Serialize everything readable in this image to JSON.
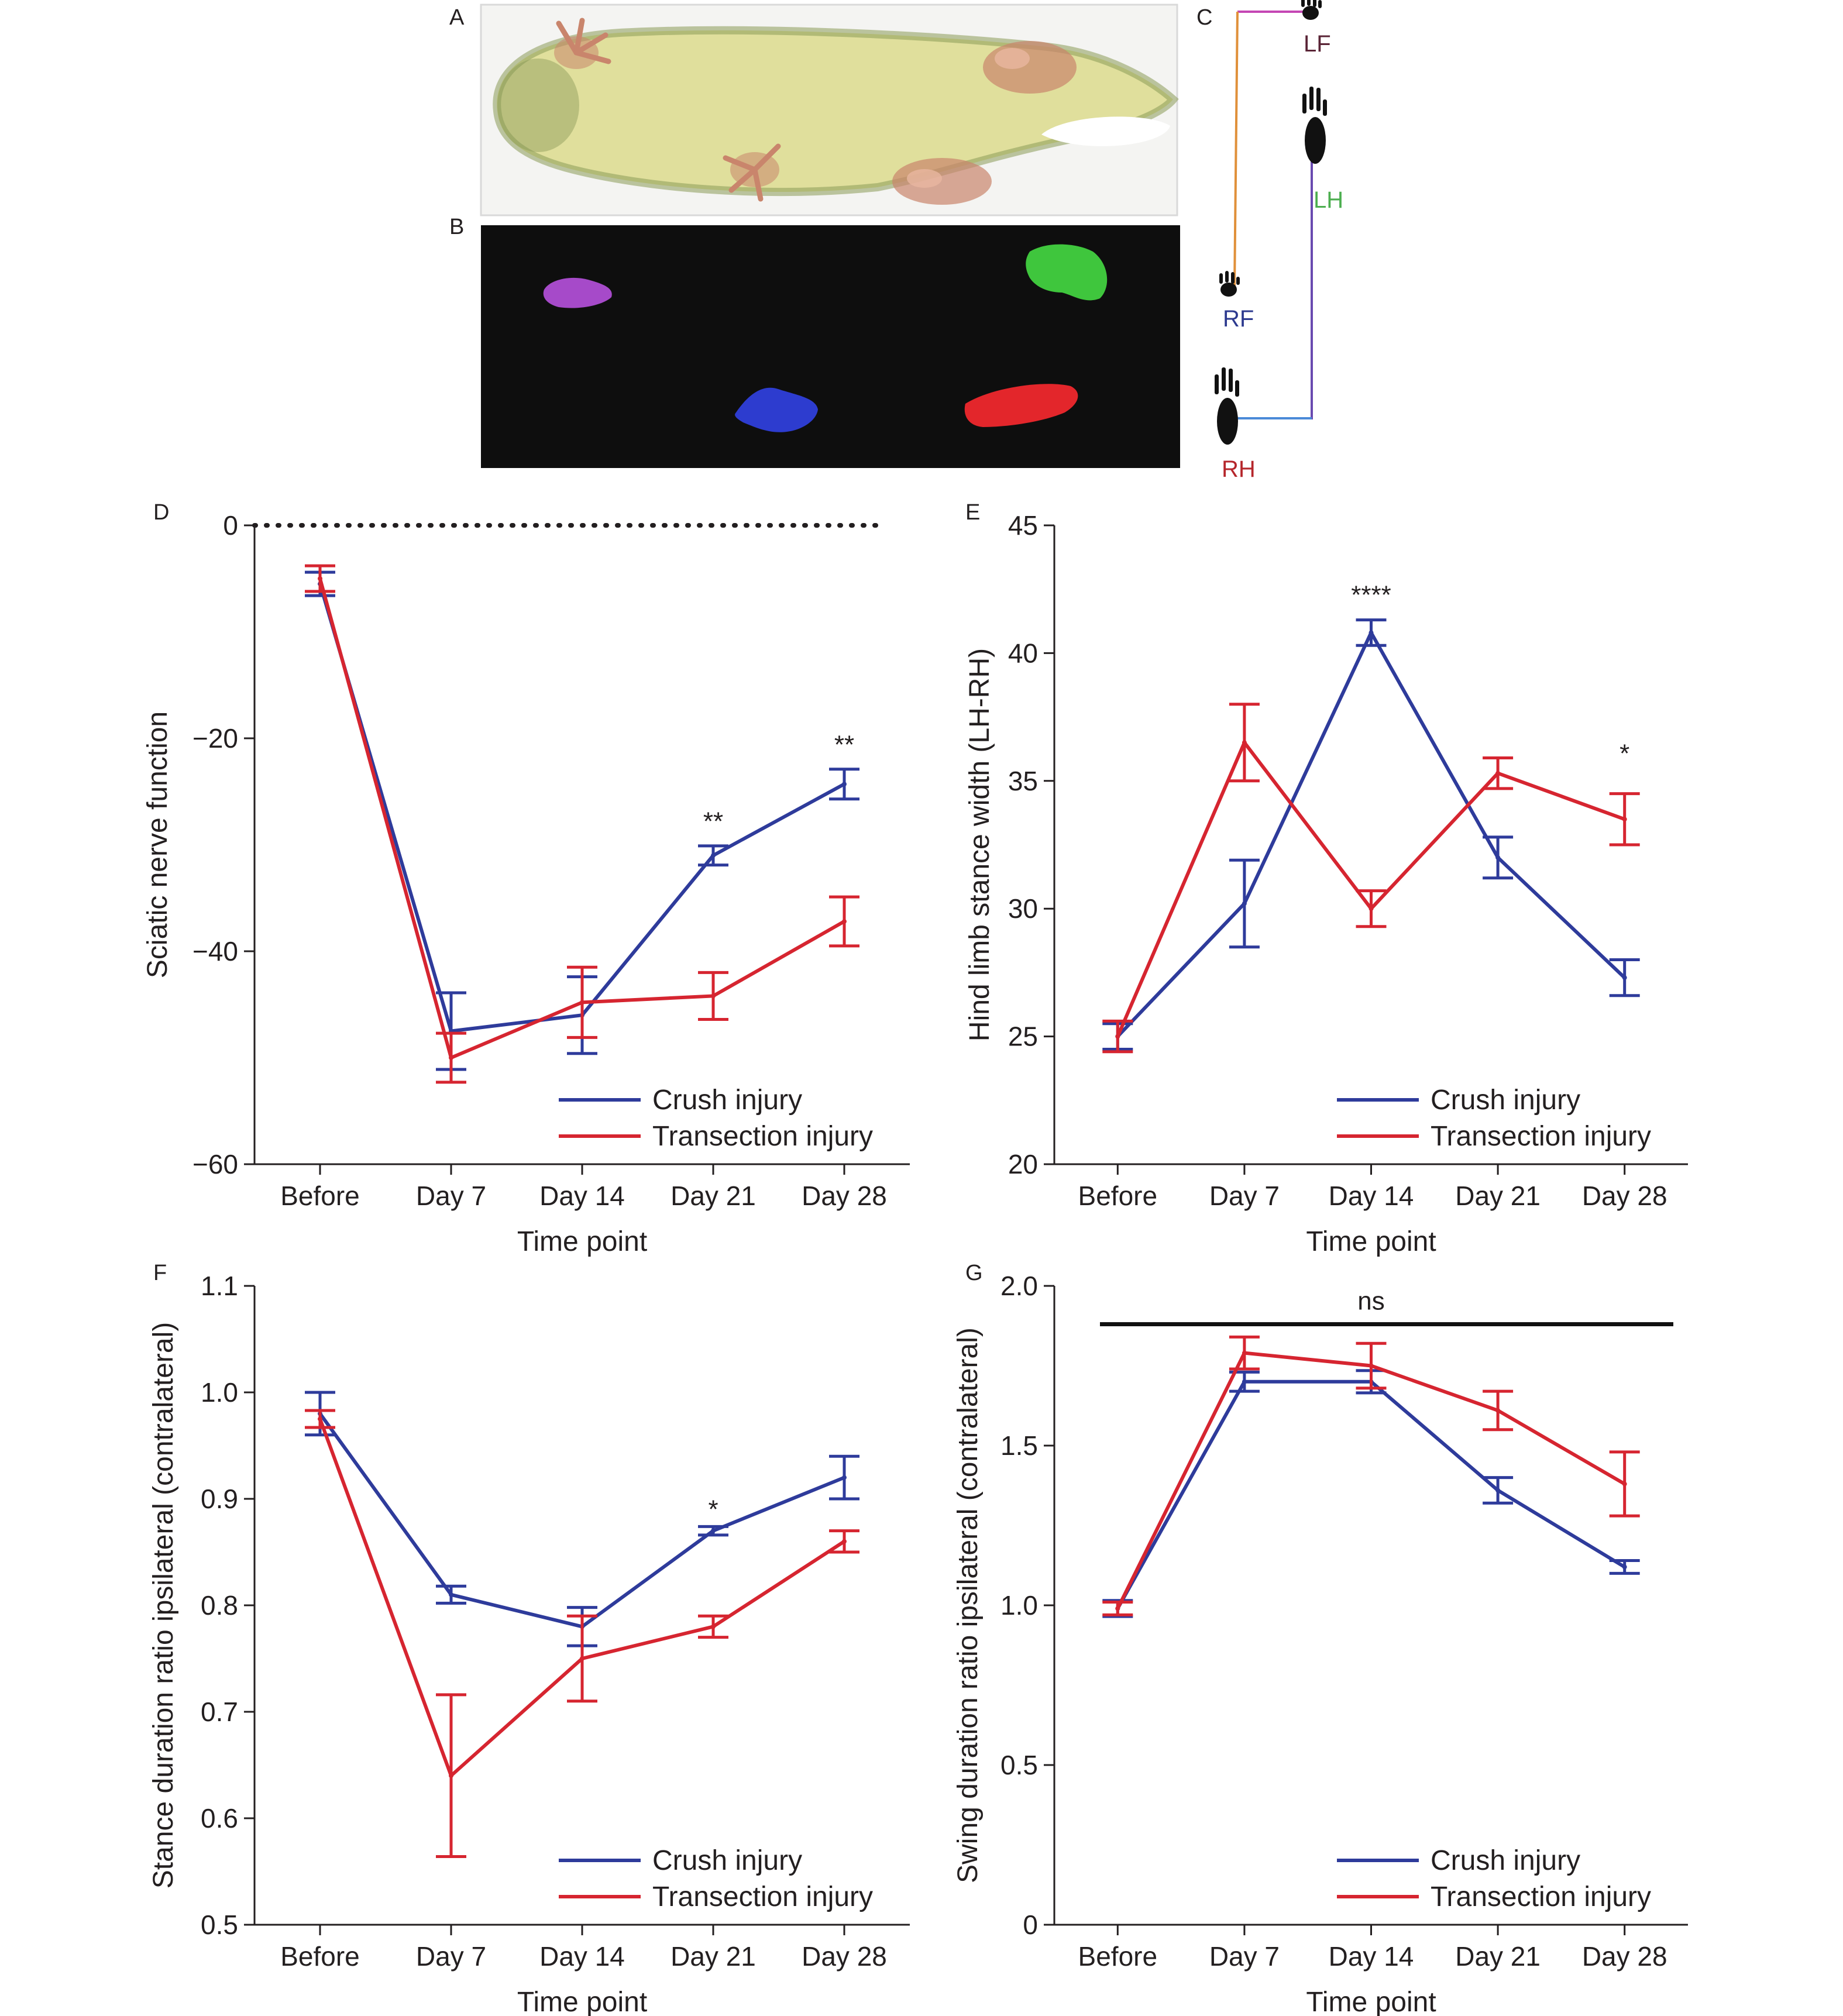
{
  "colors": {
    "crush": "#2e3b9b",
    "transection": "#d62530",
    "axis": "#231f20",
    "rat_body": "#e0df9c",
    "rat_shadow": "#8a9a58",
    "paw_tint": "#c9856c",
    "print_bg": "#0e0e0e",
    "print_lf": "#a64ac9",
    "print_lh": "#3fc63d",
    "print_rf": "#2d3ccf",
    "print_rh": "#e3262b",
    "lf": "#5a2436",
    "lh": "#4cae4f",
    "rf": "#2d3a8f",
    "rh": "#b5262b",
    "trace_orange": "#e0903a",
    "trace_magenta": "#c447b4",
    "trace_blue": "#4a8ad8",
    "trace_purple": "#6a4ab0"
  },
  "panels": {
    "A": {
      "label": "A",
      "content": "rat-ventral-photo"
    },
    "B": {
      "label": "B",
      "content": "footprint-print-view"
    },
    "C": {
      "label": "C",
      "paw_labels": {
        "lf": "LF",
        "lh": "LH",
        "rf": "RF",
        "rh": "RH"
      },
      "paw_icon": "paw-print-icon"
    }
  },
  "chart_data": [
    {
      "panel": "D",
      "type": "line",
      "categories": [
        "Before",
        "Day 7",
        "Day 14",
        "Day 21",
        "Day 28"
      ],
      "xlabel": "Time point",
      "ylabel": "Sciatic nerve function",
      "ylim": [
        -60,
        0
      ],
      "yticks": [
        0,
        -20,
        -40,
        -60
      ],
      "ytick_labels": [
        "0",
        "−20",
        "−40",
        "−60"
      ],
      "reference_line": {
        "y": 0,
        "style": "dotted"
      },
      "series": [
        {
          "name": "Crush injury",
          "color_key": "crush",
          "values": [
            -5.5,
            -47.5,
            -46,
            -31,
            -24.3
          ],
          "err": [
            1.1,
            3.6,
            3.6,
            0.9,
            1.4
          ]
        },
        {
          "name": "Transection injury",
          "color_key": "transection",
          "values": [
            -5,
            -50,
            -44.8,
            -44.2,
            -37.2
          ],
          "err": [
            1.2,
            2.3,
            3.3,
            2.2,
            2.3
          ]
        }
      ],
      "significance": [
        {
          "category": "Day 21",
          "y": -27.5,
          "text": "**"
        },
        {
          "category": "Day 28",
          "y": -20.3,
          "text": "**"
        }
      ]
    },
    {
      "panel": "E",
      "type": "line",
      "categories": [
        "Before",
        "Day 7",
        "Day 14",
        "Day 21",
        "Day 28"
      ],
      "xlabel": "Time point",
      "ylabel": "Hind limb stance width (LH-RH)",
      "ylim": [
        20,
        45
      ],
      "yticks": [
        20,
        25,
        30,
        35,
        40,
        45
      ],
      "ytick_labels": [
        "20",
        "25",
        "30",
        "35",
        "40",
        "45"
      ],
      "series": [
        {
          "name": "Crush injury",
          "color_key": "crush",
          "values": [
            25,
            30.2,
            40.8,
            32,
            27.3
          ],
          "err": [
            0.5,
            1.7,
            0.5,
            0.8,
            0.7
          ]
        },
        {
          "name": "Transection injury",
          "color_key": "transection",
          "values": [
            25,
            36.5,
            30,
            35.3,
            33.5
          ],
          "err": [
            0.6,
            1.5,
            0.7,
            0.6,
            1.0
          ]
        }
      ],
      "significance": [
        {
          "category": "Day 14",
          "y": 42.4,
          "text": "****"
        },
        {
          "category": "Day 28",
          "y": 36.2,
          "text": "*"
        }
      ]
    },
    {
      "panel": "F",
      "type": "line",
      "categories": [
        "Before",
        "Day 7",
        "Day 14",
        "Day 21",
        "Day 28"
      ],
      "xlabel": "Time point",
      "ylabel": "Stance duration ratio ipsilateral (contralateral)",
      "ylim": [
        0.5,
        1.1
      ],
      "yticks": [
        0.5,
        0.6,
        0.7,
        0.8,
        0.9,
        1.0,
        1.1
      ],
      "ytick_labels": [
        "0.5",
        "0.6",
        "0.7",
        "0.8",
        "0.9",
        "1.0",
        "1.1"
      ],
      "series": [
        {
          "name": "Crush injury",
          "color_key": "crush",
          "values": [
            0.98,
            0.81,
            0.78,
            0.87,
            0.92
          ],
          "err": [
            0.02,
            0.008,
            0.018,
            0.004,
            0.02
          ]
        },
        {
          "name": "Transection injury",
          "color_key": "transection",
          "values": [
            0.975,
            0.64,
            0.75,
            0.78,
            0.86
          ],
          "err": [
            0.008,
            0.076,
            0.04,
            0.01,
            0.01
          ]
        }
      ],
      "significance": [
        {
          "category": "Day 21",
          "y": 0.893,
          "text": "*"
        }
      ]
    },
    {
      "panel": "G",
      "type": "line",
      "categories": [
        "Before",
        "Day 7",
        "Day 14",
        "Day 21",
        "Day 28"
      ],
      "xlabel": "Time point",
      "ylabel": "Swing duration ratio ipsilateral (contralateral)",
      "ylim": [
        0,
        2.0
      ],
      "yticks": [
        0,
        0.5,
        1.0,
        1.5,
        2.0
      ],
      "ytick_labels": [
        "0",
        "0.5",
        "1.0",
        "1.5",
        "2.0"
      ],
      "reference_bar": {
        "y": 1.88,
        "text": "ns"
      },
      "series": [
        {
          "name": "Crush injury",
          "color_key": "crush",
          "values": [
            0.99,
            1.7,
            1.7,
            1.36,
            1.12
          ],
          "err": [
            0.025,
            0.03,
            0.035,
            0.04,
            0.02
          ]
        },
        {
          "name": "Transection injury",
          "color_key": "transection",
          "values": [
            0.99,
            1.79,
            1.75,
            1.61,
            1.38
          ],
          "err": [
            0.02,
            0.05,
            0.07,
            0.06,
            0.1
          ]
        }
      ],
      "significance": []
    }
  ]
}
